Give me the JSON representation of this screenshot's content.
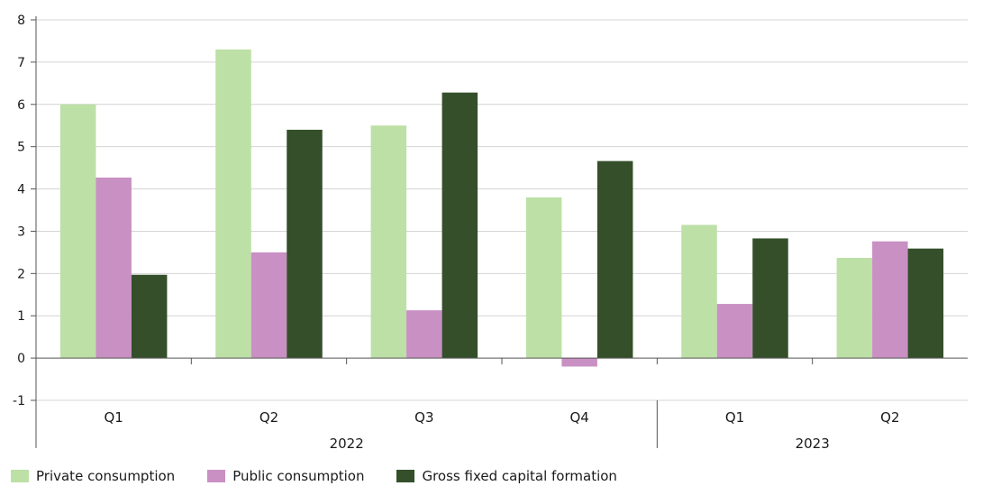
{
  "chart_data": {
    "type": "bar",
    "categories": [
      "Q1",
      "Q2",
      "Q3",
      "Q4",
      "Q1",
      "Q2"
    ],
    "groups": [
      {
        "label": "2022",
        "categories": [
          "Q1",
          "Q2",
          "Q3",
          "Q4"
        ]
      },
      {
        "label": "2023",
        "categories": [
          "Q1",
          "Q2"
        ]
      }
    ],
    "series": [
      {
        "name": "Private consumption",
        "color": "#bde0a6",
        "values": [
          6.0,
          7.3,
          5.5,
          3.8,
          3.15,
          2.37
        ]
      },
      {
        "name": "Public consumption",
        "color": "#c990c3",
        "values": [
          4.27,
          2.5,
          1.13,
          -0.2,
          1.28,
          2.76
        ]
      },
      {
        "name": "Gross fixed capital formation",
        "color": "#344f2a",
        "values": [
          1.97,
          5.4,
          6.28,
          4.66,
          2.83,
          2.59
        ]
      }
    ],
    "ylim": [
      -1,
      8
    ],
    "yticks": [
      -1,
      0,
      1,
      2,
      3,
      4,
      5,
      6,
      7,
      8
    ],
    "grid": true,
    "legend_position": "bottom-left",
    "title": "",
    "xlabel": "",
    "ylabel": ""
  }
}
